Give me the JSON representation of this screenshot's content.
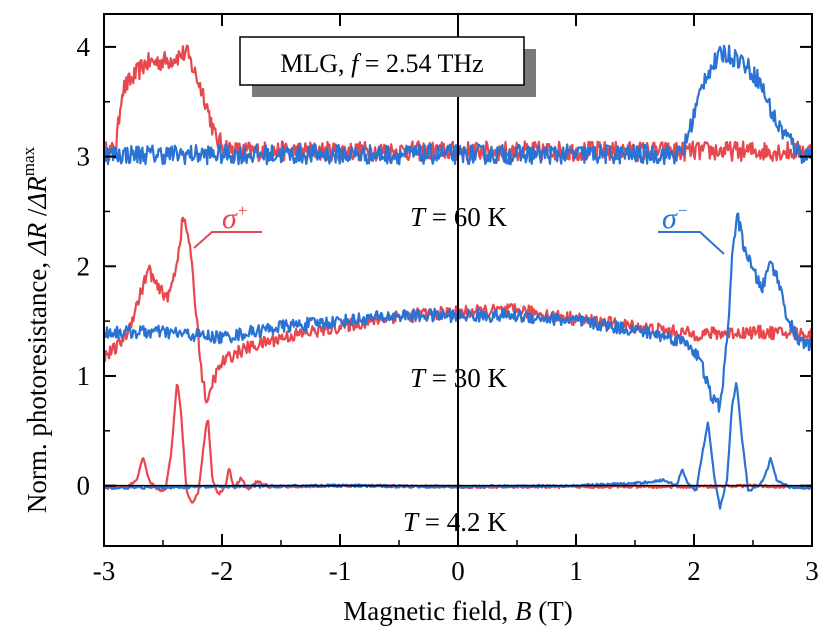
{
  "chart_data": {
    "type": "line",
    "title": "",
    "annotation_box": {
      "prefix": "MLG, ",
      "var": "f",
      "value": " = 2.54 THz"
    },
    "xlabel": {
      "text": "Magnetic field, ",
      "var": "B",
      "unit": " (T)"
    },
    "ylabel": {
      "text": "Norm. photoresistance,  ",
      "num": "ΔR",
      "sep": " /",
      "den": "ΔR",
      "sup": "max"
    },
    "xlim": [
      -3,
      3
    ],
    "ylim": [
      -0.55,
      4.3
    ],
    "x_ticks": [
      "-3",
      "-2",
      "-1",
      "0",
      "1",
      "2",
      "3"
    ],
    "y_ticks": [
      "0",
      "1",
      "2",
      "3",
      "4"
    ],
    "temperature_labels": [
      {
        "var": "T",
        "text": " = 60 K",
        "x": 0.08,
        "y": 2.38
      },
      {
        "var": "T",
        "text": " = 30 K",
        "x": 0.08,
        "y": 0.95
      },
      {
        "var": "T",
        "text": " = 4.2 K",
        "x": 0.08,
        "y": -0.34
      }
    ],
    "legend": [
      {
        "symbol": "σ",
        "sup": "+",
        "color": "#e8484d",
        "x": -2.0,
        "y": 2.3
      },
      {
        "symbol": "σ",
        "sup": "−",
        "color": "#2a73d4",
        "x": 1.8,
        "y": 2.3
      }
    ],
    "colors": {
      "sigma_plus": "#e8484d",
      "sigma_minus": "#2a73d4"
    },
    "traces": [
      {
        "temperature": "60 K",
        "polarization": "σ+",
        "color": "#e8484d",
        "baseline": 3.05,
        "noise": 0.09,
        "features": [
          [
            -2.85,
            3.6
          ],
          [
            -2.65,
            3.85
          ],
          [
            -2.45,
            3.88
          ],
          [
            -2.3,
            3.95
          ],
          [
            -2.15,
            3.55
          ],
          [
            -2.05,
            3.15
          ],
          [
            -1.9,
            3.05
          ]
        ]
      },
      {
        "temperature": "60 K",
        "polarization": "σ−",
        "color": "#2a73d4",
        "baseline": 3.02,
        "noise": 0.09,
        "features": [
          [
            1.95,
            3.2
          ],
          [
            2.1,
            3.75
          ],
          [
            2.25,
            3.95
          ],
          [
            2.4,
            3.88
          ],
          [
            2.55,
            3.7
          ],
          [
            2.7,
            3.3
          ],
          [
            2.85,
            3.1
          ]
        ]
      },
      {
        "temperature": "30 K",
        "polarization": "σ+",
        "color": "#e8484d",
        "noise": 0.06,
        "points": [
          [
            -3.0,
            1.18
          ],
          [
            -2.9,
            1.25
          ],
          [
            -2.8,
            1.4
          ],
          [
            -2.7,
            1.72
          ],
          [
            -2.62,
            1.98
          ],
          [
            -2.55,
            1.8
          ],
          [
            -2.45,
            1.72
          ],
          [
            -2.38,
            2.05
          ],
          [
            -2.33,
            2.45
          ],
          [
            -2.28,
            2.25
          ],
          [
            -2.22,
            1.6
          ],
          [
            -2.17,
            1.0
          ],
          [
            -2.12,
            0.72
          ],
          [
            -2.08,
            0.95
          ],
          [
            -2.0,
            1.12
          ],
          [
            -1.9,
            1.2
          ],
          [
            -1.8,
            1.25
          ],
          [
            -1.5,
            1.35
          ],
          [
            -1.0,
            1.45
          ],
          [
            -0.5,
            1.55
          ],
          [
            0.0,
            1.58
          ],
          [
            0.5,
            1.6
          ],
          [
            1.0,
            1.52
          ],
          [
            1.5,
            1.45
          ],
          [
            2.0,
            1.38
          ],
          [
            2.5,
            1.4
          ],
          [
            3.0,
            1.38
          ]
        ]
      },
      {
        "temperature": "30 K",
        "polarization": "σ−",
        "color": "#2a73d4",
        "noise": 0.06,
        "points": [
          [
            -3.0,
            1.4
          ],
          [
            -2.5,
            1.4
          ],
          [
            -2.0,
            1.35
          ],
          [
            -1.5,
            1.45
          ],
          [
            -1.0,
            1.5
          ],
          [
            -0.5,
            1.55
          ],
          [
            0.0,
            1.55
          ],
          [
            0.5,
            1.55
          ],
          [
            1.0,
            1.5
          ],
          [
            1.5,
            1.42
          ],
          [
            1.8,
            1.35
          ],
          [
            1.95,
            1.3
          ],
          [
            2.05,
            1.15
          ],
          [
            2.15,
            0.8
          ],
          [
            2.22,
            0.72
          ],
          [
            2.28,
            1.3
          ],
          [
            2.33,
            2.2
          ],
          [
            2.37,
            2.45
          ],
          [
            2.42,
            2.2
          ],
          [
            2.5,
            1.95
          ],
          [
            2.58,
            1.8
          ],
          [
            2.65,
            2.05
          ],
          [
            2.72,
            1.85
          ],
          [
            2.8,
            1.5
          ],
          [
            2.9,
            1.3
          ],
          [
            3.0,
            1.28
          ]
        ]
      },
      {
        "temperature": "4.2 K",
        "polarization": "σ+",
        "color": "#e8484d",
        "noise": 0.012,
        "points": [
          [
            -3.0,
            -0.02
          ],
          [
            -2.8,
            -0.01
          ],
          [
            -2.72,
            0.05
          ],
          [
            -2.67,
            0.26
          ],
          [
            -2.62,
            0.05
          ],
          [
            -2.55,
            -0.03
          ],
          [
            -2.48,
            -0.05
          ],
          [
            -2.43,
            0.3
          ],
          [
            -2.38,
            0.97
          ],
          [
            -2.35,
            0.7
          ],
          [
            -2.3,
            -0.05
          ],
          [
            -2.25,
            -0.17
          ],
          [
            -2.2,
            -0.05
          ],
          [
            -2.14,
            0.5
          ],
          [
            -2.12,
            0.63
          ],
          [
            -2.08,
            0.05
          ],
          [
            -2.03,
            -0.08
          ],
          [
            -1.97,
            0.0
          ],
          [
            -1.94,
            0.17
          ],
          [
            -1.9,
            -0.03
          ],
          [
            -1.84,
            0.07
          ],
          [
            -1.78,
            -0.03
          ],
          [
            -1.7,
            0.04
          ],
          [
            -1.6,
            -0.01
          ],
          [
            -1.0,
            0.0
          ],
          [
            0.0,
            -0.01
          ],
          [
            1.0,
            -0.01
          ],
          [
            2.0,
            -0.01
          ],
          [
            2.5,
            0.0
          ],
          [
            3.0,
            -0.02
          ]
        ]
      },
      {
        "temperature": "4.2 K",
        "polarization": "σ−",
        "color": "#2a73d4",
        "noise": 0.012,
        "points": [
          [
            -3.0,
            -0.02
          ],
          [
            -2.0,
            -0.01
          ],
          [
            -1.0,
            0.0
          ],
          [
            0.0,
            -0.01
          ],
          [
            1.0,
            0.0
          ],
          [
            1.5,
            0.02
          ],
          [
            1.75,
            0.05
          ],
          [
            1.85,
            0.0
          ],
          [
            1.9,
            0.15
          ],
          [
            1.95,
            0.02
          ],
          [
            2.02,
            -0.05
          ],
          [
            2.07,
            0.3
          ],
          [
            2.12,
            0.58
          ],
          [
            2.17,
            0.1
          ],
          [
            2.22,
            -0.2
          ],
          [
            2.28,
            0.05
          ],
          [
            2.32,
            0.7
          ],
          [
            2.36,
            0.95
          ],
          [
            2.41,
            0.4
          ],
          [
            2.46,
            -0.05
          ],
          [
            2.55,
            0.0
          ],
          [
            2.6,
            0.08
          ],
          [
            2.65,
            0.25
          ],
          [
            2.7,
            0.05
          ],
          [
            2.8,
            -0.01
          ],
          [
            3.0,
            -0.02
          ]
        ]
      }
    ]
  }
}
